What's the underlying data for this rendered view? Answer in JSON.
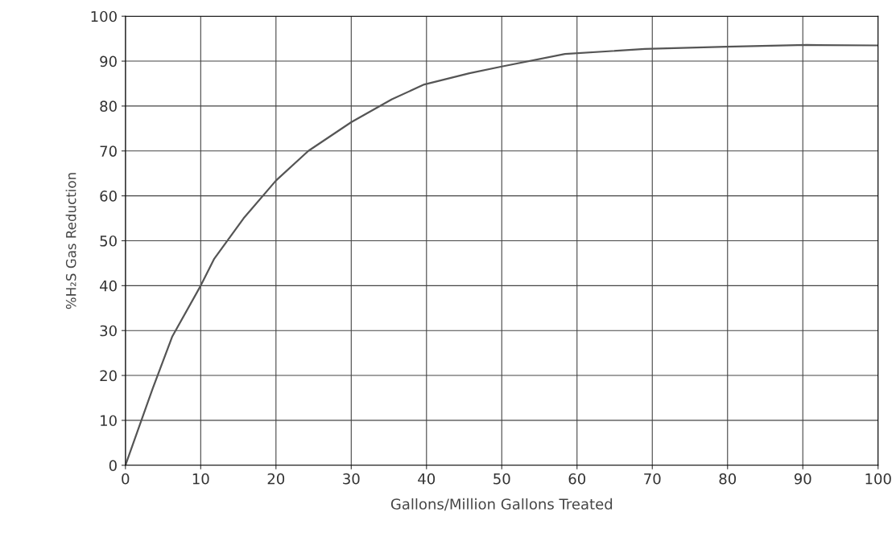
{
  "chart_data": {
    "type": "line",
    "xlabel": "Gallons/Million Gallons Treated",
    "ylabel": "%H₂S Gas Reduction",
    "series": [
      {
        "color": "#555555",
        "x": [
          0,
          3.6,
          6.2,
          10,
          11.8,
          15.7,
          20,
          24.3,
          30,
          35.4,
          39.7,
          45.7,
          50,
          58.4,
          69,
          79.8,
          90.5,
          100
        ],
        "values": [
          0,
          17,
          28.6,
          40,
          46,
          55,
          63.4,
          70,
          76.4,
          81.5,
          84.8,
          87.3,
          88.8,
          91.6,
          92.7,
          93.2,
          93.6,
          93.5
        ]
      }
    ],
    "xlim": [
      0,
      100
    ],
    "xticks": [
      0,
      10,
      20,
      30,
      40,
      50,
      60,
      70,
      80,
      90,
      100
    ],
    "ylim": [
      0,
      100
    ],
    "yticks": [
      0,
      10,
      20,
      30,
      40,
      50,
      60,
      70,
      80,
      90,
      100
    ],
    "grid": true,
    "marker": "none",
    "line_style": "solid"
  }
}
